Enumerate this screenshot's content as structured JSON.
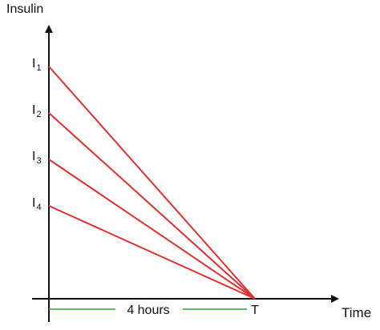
{
  "chart_data": {
    "type": "line",
    "title": "",
    "xlabel": "Time",
    "ylabel": "Insulin",
    "x_tick": "T",
    "y_ticks": [
      {
        "base": "I",
        "sub": "1",
        "value": 4
      },
      {
        "base": "I",
        "sub": "2",
        "value": 3.2
      },
      {
        "base": "I",
        "sub": "3",
        "value": 2.4
      },
      {
        "base": "I",
        "sub": "4",
        "value": 1.6
      }
    ],
    "interval_label": "4 hours",
    "series": [
      {
        "x": [
          0,
          4
        ],
        "y": [
          4,
          0
        ]
      },
      {
        "x": [
          0,
          4
        ],
        "y": [
          3.2,
          0
        ]
      },
      {
        "x": [
          0,
          4
        ],
        "y": [
          2.4,
          0
        ]
      },
      {
        "x": [
          0,
          4
        ],
        "y": [
          1.6,
          0
        ]
      }
    ],
    "line_color": "#e03030",
    "interval_color": "#22aa33",
    "grid": false,
    "legend": "none"
  }
}
